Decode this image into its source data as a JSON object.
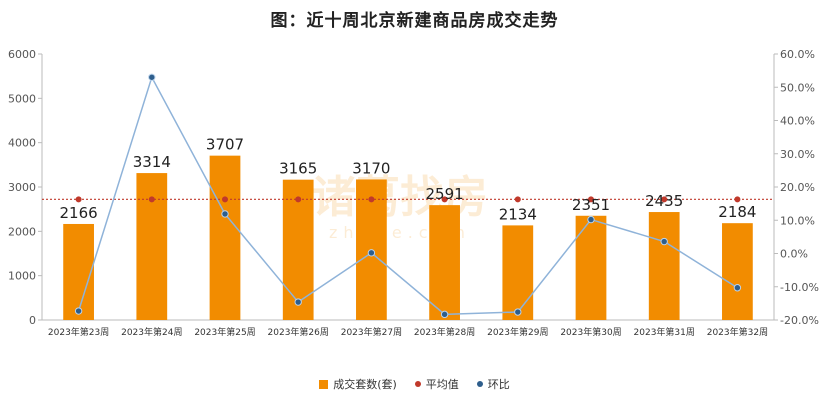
{
  "title": "图：近十周北京新建商品房成交走势",
  "watermark": {
    "text": "诸葛找房",
    "sub": "zhuge.com"
  },
  "legend": {
    "bar_label": "成交套数(套)",
    "avg_label": "平均值",
    "ring_label": "环比"
  },
  "colors": {
    "bar": "#f28c00",
    "avg": "#c0392b",
    "ring_line": "#8fb3d9",
    "ring_marker": "#2e5e8c"
  },
  "chart_data": {
    "type": "bar",
    "categories": [
      "2023年第23周",
      "2023年第24周",
      "2023年第25周",
      "2023年第26周",
      "2023年第27周",
      "2023年第28周",
      "2023年第29周",
      "2023年第30周",
      "2023年第31周",
      "2023年第32周"
    ],
    "series": [
      {
        "name": "成交套数(套)",
        "type": "bar",
        "axis": "left",
        "values": [
          2166,
          3314,
          3707,
          3165,
          3170,
          2591,
          2134,
          2351,
          2435,
          2184
        ]
      },
      {
        "name": "平均值",
        "type": "scatter",
        "axis": "left",
        "values": [
          2722,
          2722,
          2722,
          2722,
          2722,
          2722,
          2722,
          2722,
          2722,
          2722
        ]
      },
      {
        "name": "环比",
        "type": "line",
        "axis": "right",
        "values": [
          -17.3,
          53.0,
          11.9,
          -14.6,
          0.2,
          -18.3,
          -17.6,
          10.2,
          3.6,
          -10.3
        ]
      }
    ],
    "y_left": {
      "min": 0,
      "max": 6000,
      "ticks": [
        "0",
        "1000",
        "2000",
        "3000",
        "4000",
        "5000",
        "6000"
      ]
    },
    "y_right": {
      "min": -20,
      "max": 60,
      "ticks": [
        "-20.0%",
        "-10.0%",
        "0.0%",
        "10.0%",
        "20.0%",
        "30.0%",
        "40.0%",
        "50.0%",
        "60.0%"
      ]
    },
    "legend_position": "bottom",
    "grid": false
  }
}
